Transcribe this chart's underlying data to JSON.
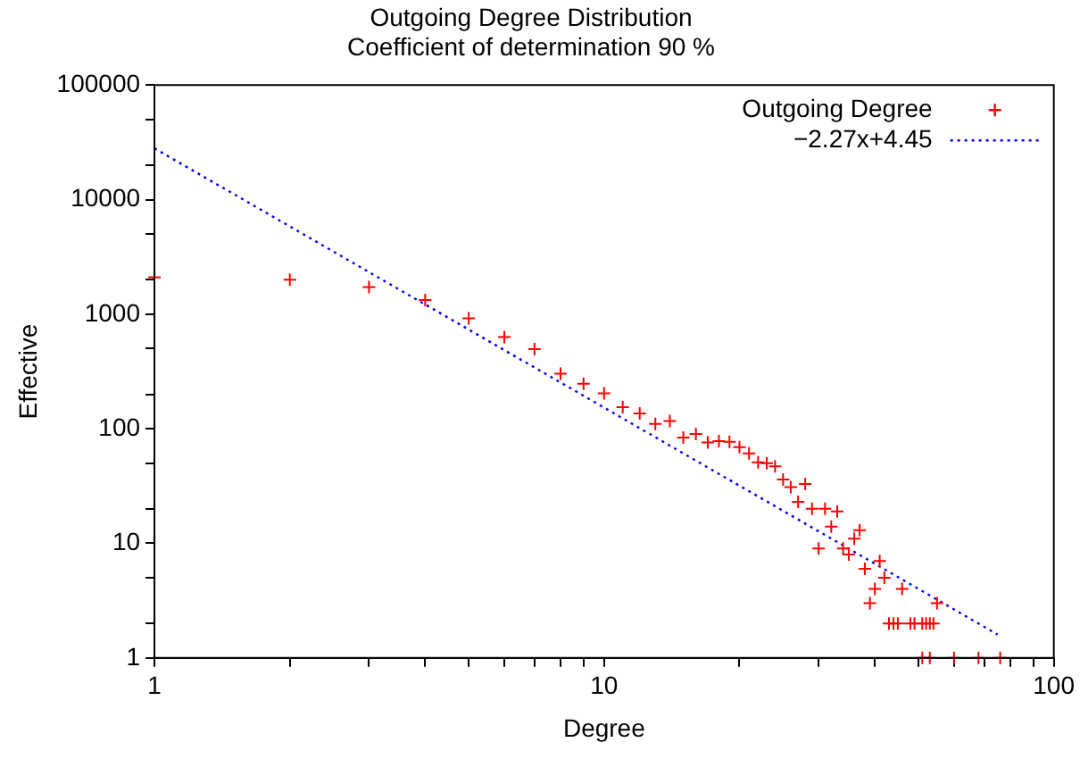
{
  "chart_data": {
    "type": "scatter",
    "title": "Outgoing Degree Distribution",
    "subtitle": "Coefficient of determination 90 %",
    "xlabel": "Degree",
    "ylabel": "Effective",
    "log": "xy",
    "grid": false,
    "legend": "top right",
    "marker": "cross",
    "xlim": [
      1,
      100
    ],
    "xticks": [
      1,
      {
        "value": 2,
        "label": null
      },
      {
        "value": 3,
        "label": null
      },
      {
        "value": 4,
        "label": null
      },
      {
        "value": 5,
        "label": null
      },
      {
        "value": 6,
        "label": null
      },
      {
        "value": 7,
        "label": null
      },
      {
        "value": 8,
        "label": null
      },
      {
        "value": 9,
        "label": null
      },
      10,
      {
        "value": 20,
        "label": null
      },
      {
        "value": 30,
        "label": null
      },
      {
        "value": 40,
        "label": null
      },
      {
        "value": 50,
        "label": null
      },
      {
        "value": 60,
        "label": null
      },
      {
        "value": 70,
        "label": null
      },
      {
        "value": 80,
        "label": null
      },
      {
        "value": 90,
        "label": null
      },
      100
    ],
    "ylim": [
      1,
      100000
    ],
    "yticks": [
      1,
      {
        "value": 2,
        "label": null
      },
      {
        "value": 5,
        "label": null
      },
      10,
      {
        "value": 20,
        "label": null
      },
      {
        "value": 50,
        "label": null
      },
      100,
      {
        "value": 200,
        "label": null
      },
      {
        "value": 500,
        "label": null
      },
      1000,
      {
        "value": 2000,
        "label": null
      },
      {
        "value": 5000,
        "label": null
      },
      10000,
      {
        "value": 20000,
        "label": null
      },
      {
        "value": 50000,
        "label": null
      },
      100000
    ],
    "series": [
      {
        "name": "Outgoing Degree",
        "type": "scatter",
        "color": "#ff0000",
        "x": [
          1,
          2,
          3,
          4,
          5,
          6,
          7,
          8,
          9,
          10,
          11,
          12,
          13,
          14,
          15,
          16,
          17,
          18,
          19,
          20,
          21,
          22,
          23,
          24,
          25,
          26,
          27,
          28,
          29,
          30,
          31,
          32,
          33,
          34,
          35,
          36,
          37,
          38,
          39,
          40,
          41,
          42,
          43,
          44,
          45,
          46,
          48,
          49,
          51,
          52,
          53,
          54,
          55,
          51,
          53,
          60,
          68,
          76
        ],
        "values": [
          2100,
          2000,
          1720,
          1330,
          920,
          630,
          495,
          302,
          247,
          204,
          154,
          136,
          110,
          117,
          84,
          90,
          76,
          78,
          77,
          69,
          61,
          51,
          50,
          47,
          36,
          31,
          23,
          33,
          20,
          9,
          20,
          14,
          19,
          9,
          8,
          11,
          13,
          6,
          3,
          4,
          7,
          5,
          2,
          2,
          2,
          4,
          2,
          2,
          2,
          2,
          2,
          2,
          3,
          1,
          1,
          1,
          1,
          1
        ]
      },
      {
        "name": "−2.27x+4.45",
        "type": "line",
        "color": "#0000ff",
        "line_style": "dotted",
        "marker": "none",
        "x": [
          1,
          75
        ],
        "values": [
          28000,
          1.6
        ]
      }
    ]
  }
}
